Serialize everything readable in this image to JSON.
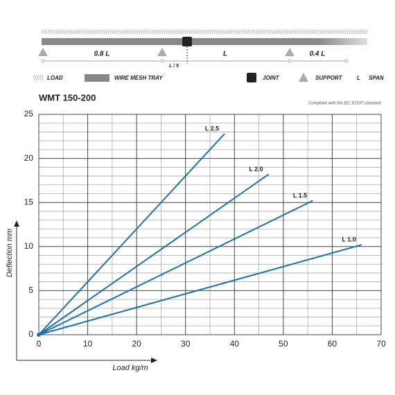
{
  "diagram": {
    "spans": [
      "0.8 L",
      "L",
      "0.4 L"
    ],
    "joint_offset": "L / 5"
  },
  "legend": [
    "LOAD",
    "WIRE MESH TRAY",
    "JOINT",
    "SUPPORT",
    "L",
    "SPAN"
  ],
  "chart_data": {
    "type": "line",
    "title": "WMT 150-200",
    "subtitle": "Compliant with the IEC 61537 standard.",
    "x_label": "Load kg/m",
    "y_label": "Deflection mm",
    "xlim": [
      0,
      70
    ],
    "ylim": [
      0,
      25
    ],
    "xticks": [
      0,
      10,
      20,
      30,
      40,
      50,
      60,
      70
    ],
    "yticks": [
      0,
      5,
      10,
      15,
      20,
      25
    ],
    "grid": true,
    "series": [
      {
        "name": "L 2.5",
        "color": "#1f6fa8",
        "x": [
          0,
          38
        ],
        "values": [
          0,
          22.8
        ]
      },
      {
        "name": "L 2.0",
        "color": "#1f6fa8",
        "x": [
          0,
          47
        ],
        "values": [
          0,
          18.2
        ]
      },
      {
        "name": "L 1.5",
        "color": "#1f6fa8",
        "x": [
          0,
          56
        ],
        "values": [
          0,
          15.2
        ]
      },
      {
        "name": "L 1.0",
        "color": "#1f6fa8",
        "x": [
          0,
          66
        ],
        "values": [
          0,
          10.2
        ]
      }
    ]
  }
}
